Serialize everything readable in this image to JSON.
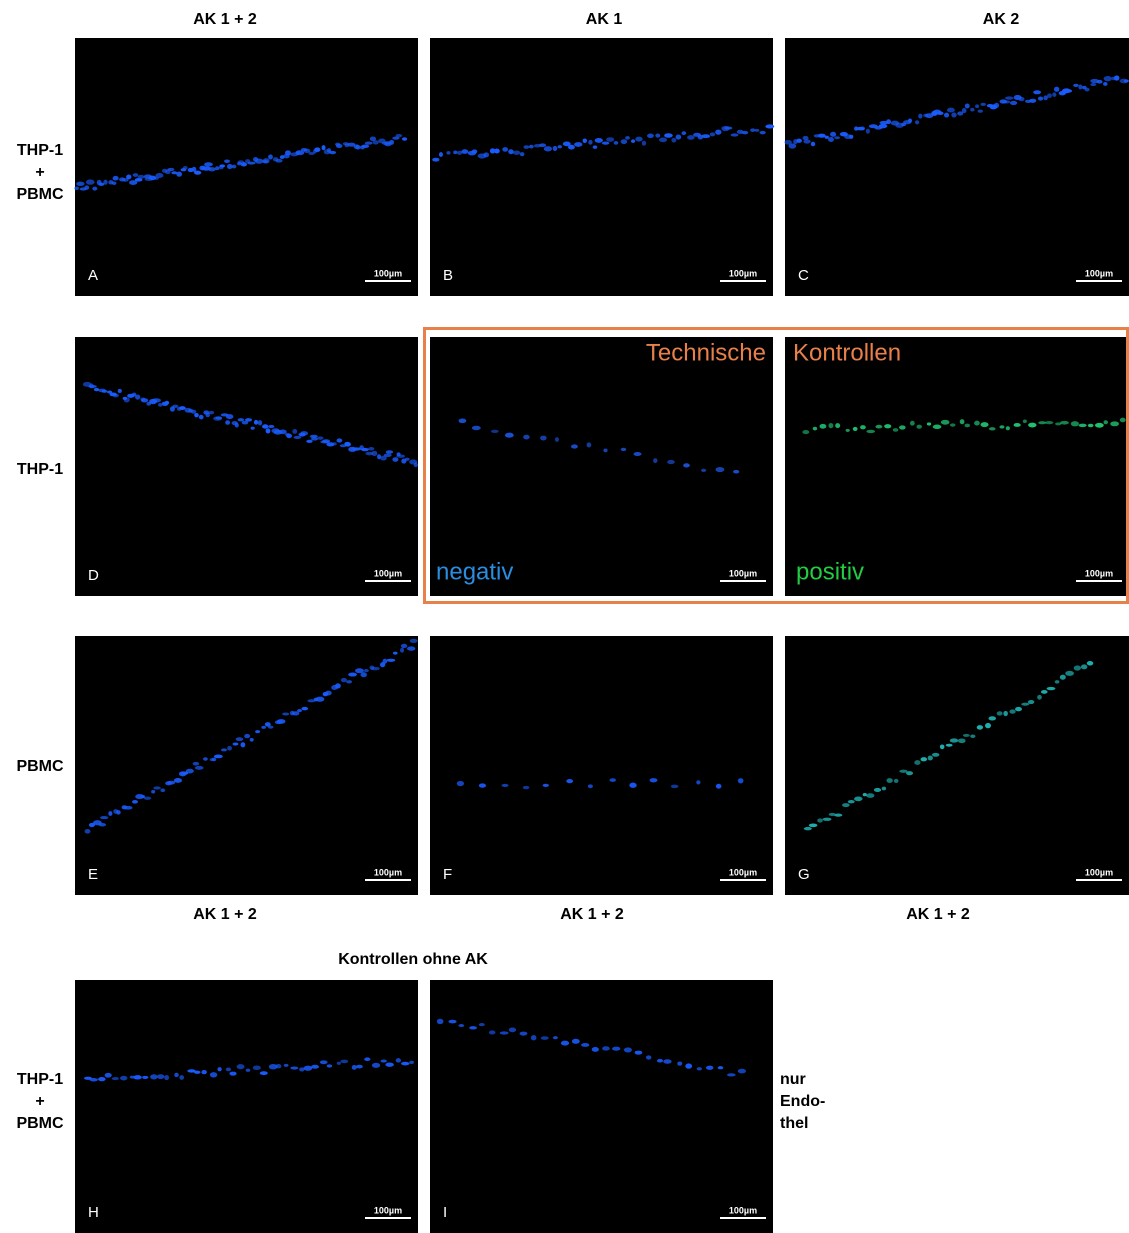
{
  "column_headers": [
    "AK 1 + 2",
    "AK 1",
    "AK 2"
  ],
  "row_labels": [
    [
      "THP-1",
      "+",
      "PBMC"
    ],
    [
      "THP-1"
    ],
    [
      "PBMC"
    ],
    [
      "THP-1",
      "+",
      "PBMC"
    ]
  ],
  "panels": [
    {
      "letter": "A",
      "scale_bar": "100µm"
    },
    {
      "letter": "B",
      "scale_bar": "100µm"
    },
    {
      "letter": "C",
      "scale_bar": "100µm"
    },
    {
      "letter": "D",
      "scale_bar": "100µm"
    },
    {
      "letter": "E",
      "scale_bar": "100µm"
    },
    {
      "letter": "F",
      "scale_bar": "100µm"
    },
    {
      "letter": "G",
      "scale_bar": "100µm"
    },
    {
      "letter": "H",
      "scale_bar": "100µm"
    },
    {
      "letter": "I",
      "scale_bar": "100µm"
    }
  ],
  "technical_controls": {
    "title": [
      "Technische",
      "Kontrollen"
    ],
    "negative": {
      "label": "negativ",
      "scale_bar": "100µm"
    },
    "positive": {
      "label": "positiv",
      "scale_bar": "100µm"
    }
  },
  "row3_footers": [
    "AK 1 + 2",
    "AK 1 + 2",
    "AK 1 + 2"
  ],
  "controls_title": "Kontrollen ohne AK",
  "side_label": [
    "nur",
    "Endo-",
    "thel"
  ]
}
